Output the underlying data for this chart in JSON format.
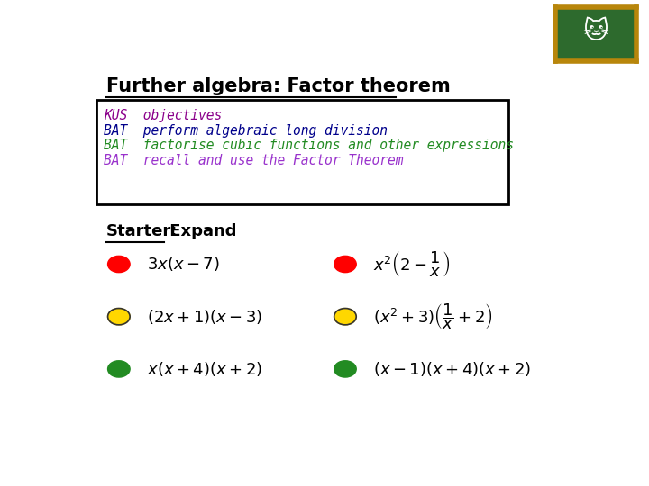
{
  "title": "Further algebra: Factor theorem",
  "title_fontsize": 15,
  "bg_color": "#ffffff",
  "box_text_lines": [
    {
      "text": "KUS  objectives",
      "color": "#8B008B",
      "style": "italic"
    },
    {
      "text": "BAT  perform algebraic long division",
      "color": "#00008B",
      "style": "italic"
    },
    {
      "text": "BAT  factorise cubic functions and other expressions",
      "color": "#228B22",
      "style": "italic"
    },
    {
      "text": "BAT  recall and use the Factor Theorem",
      "color": "#9932CC",
      "style": "italic"
    }
  ],
  "starter_label": "Starter:",
  "starter_rest": " Expand",
  "items": [
    {
      "col": 0,
      "row": 0,
      "color": "#FF0000",
      "latex": "$3x(x-7)$"
    },
    {
      "col": 1,
      "row": 0,
      "color": "#FF0000",
      "latex": "$x^2\\left(2-\\dfrac{1}{x}\\right)$"
    },
    {
      "col": 0,
      "row": 1,
      "color": "#FFD700",
      "latex": "$(2x+1)(x-3)$"
    },
    {
      "col": 1,
      "row": 1,
      "color": "#FFD700",
      "latex": "$(x^2+3)\\left(\\dfrac{1}{x}+2\\right)$"
    },
    {
      "col": 0,
      "row": 2,
      "color": "#228B22",
      "latex": "$x(x+4)(x+2)$"
    },
    {
      "col": 1,
      "row": 2,
      "color": "#228B22",
      "latex": "$(x-1)(x+4)(x+2)$"
    }
  ],
  "board_color": "#2d6a2d",
  "board_border": "#b8860b"
}
